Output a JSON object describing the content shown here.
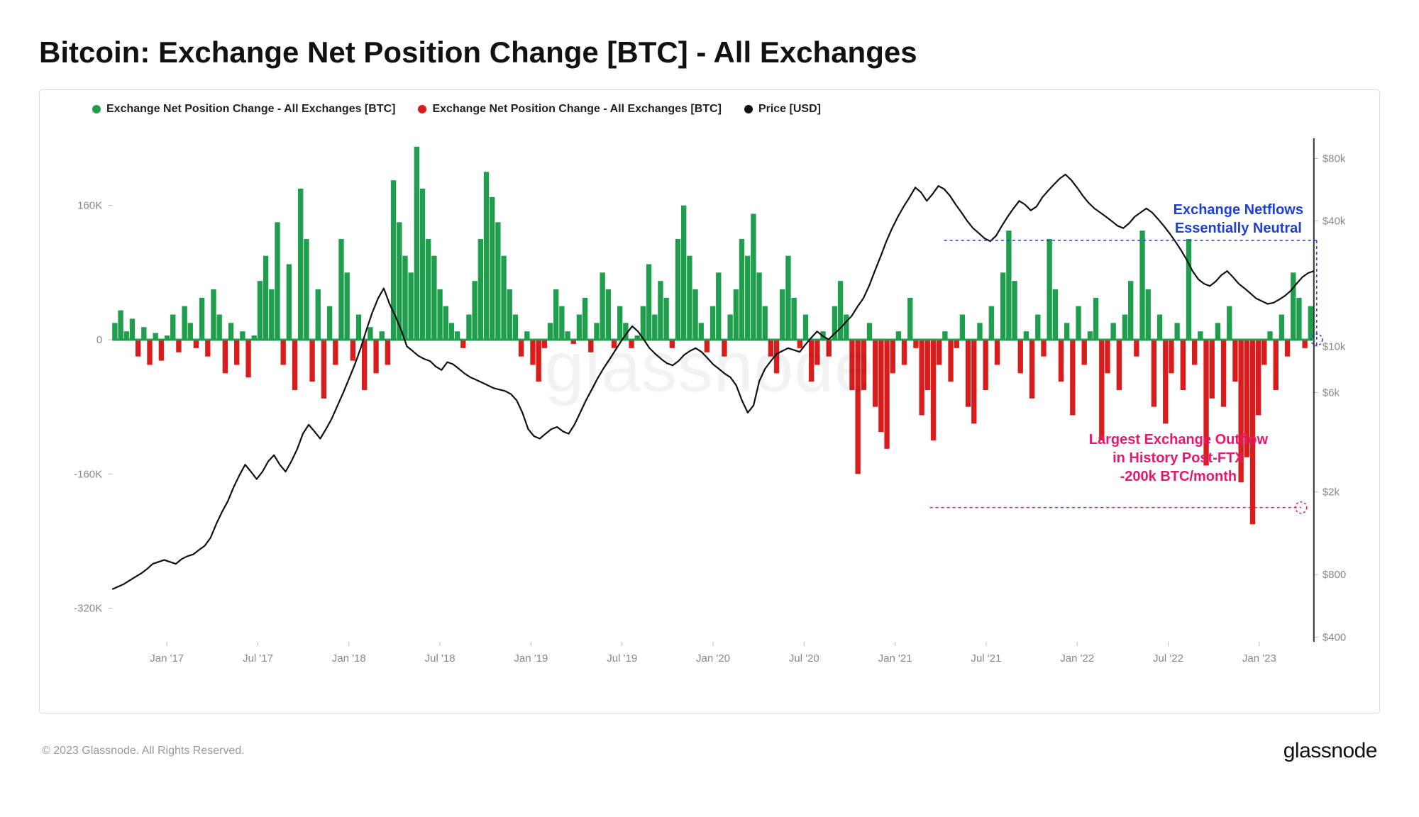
{
  "title": "Bitcoin: Exchange Net Position Change [BTC] - All Exchanges",
  "legend": {
    "series1": {
      "label": "Exchange Net Position Change - All Exchanges [BTC]",
      "color": "#1f9e4d"
    },
    "series2": {
      "label": "Exchange Net Position Change - All Exchanges [BTC]",
      "color": "#d91d1d"
    },
    "series3": {
      "label": "Price [USD]",
      "color": "#111111"
    }
  },
  "watermark": "glassnode",
  "copyright": "© 2023 Glassnode. All Rights Reserved.",
  "brand": "glassnode",
  "annotations": {
    "neutral": {
      "line1": "Exchange Netflows",
      "line2": "Essentially Neutral",
      "color": "#1c3fd6"
    },
    "outflow": {
      "line1": "Largest Exchange Outflow",
      "line2": "in History Post-FTX",
      "line3": "-200k BTC/month",
      "color": "#e6186e"
    }
  },
  "chart": {
    "type": "bar+line",
    "background_color": "#ffffff",
    "border_color": "#dcdcdc",
    "tick_color": "#888888",
    "zero_line_color": "#1f9e4d",
    "left_axis": {
      "min": -360,
      "max": 240,
      "ticks": [
        -320,
        -160,
        0,
        160
      ],
      "unit": "K"
    },
    "right_axis": {
      "type": "log",
      "min": 380,
      "max": 100000,
      "ticks": [
        400,
        800,
        2000,
        6000,
        10000,
        40000,
        80000
      ],
      "prefix": "$",
      "suffix": "k_if_ge_1000"
    },
    "x_axis": {
      "labels": [
        "Jan '17",
        "Jul '17",
        "Jan '18",
        "Jul '18",
        "Jan '19",
        "Jul '19",
        "Jan '20",
        "Jul '20",
        "Jan '21",
        "Jul '21",
        "Jan '22",
        "Jul '22",
        "Jan '23"
      ]
    },
    "bars": [
      20,
      35,
      10,
      25,
      -20,
      15,
      -30,
      8,
      -25,
      5,
      30,
      -15,
      40,
      20,
      -10,
      50,
      -20,
      60,
      30,
      -40,
      20,
      -30,
      10,
      -45,
      5,
      70,
      100,
      60,
      140,
      -30,
      90,
      -60,
      180,
      120,
      -50,
      60,
      -70,
      40,
      -30,
      120,
      80,
      -25,
      30,
      -60,
      15,
      -40,
      10,
      -30,
      190,
      140,
      100,
      80,
      230,
      180,
      120,
      100,
      60,
      40,
      20,
      10,
      -10,
      30,
      70,
      120,
      200,
      170,
      140,
      100,
      60,
      30,
      -20,
      10,
      -30,
      -50,
      -10,
      20,
      60,
      40,
      10,
      -5,
      30,
      50,
      -15,
      20,
      80,
      60,
      -10,
      40,
      20,
      -10,
      5,
      40,
      90,
      30,
      70,
      50,
      -10,
      120,
      160,
      100,
      60,
      20,
      -15,
      40,
      80,
      -20,
      30,
      60,
      120,
      100,
      150,
      80,
      40,
      -20,
      -40,
      60,
      100,
      50,
      -10,
      30,
      -50,
      -30,
      10,
      -20,
      40,
      70,
      30,
      -60,
      -160,
      -60,
      20,
      -80,
      -110,
      -130,
      -40,
      10,
      -30,
      50,
      -10,
      -90,
      -60,
      -120,
      -30,
      10,
      -50,
      -10,
      30,
      -80,
      -100,
      20,
      -60,
      40,
      -30,
      80,
      130,
      70,
      -40,
      10,
      -70,
      30,
      -20,
      120,
      60,
      -50,
      20,
      -90,
      40,
      -30,
      10,
      50,
      -120,
      -40,
      20,
      -60,
      30,
      70,
      -20,
      130,
      60,
      -80,
      30,
      -100,
      -40,
      20,
      -60,
      120,
      -30,
      10,
      -150,
      -70,
      20,
      -80,
      40,
      -50,
      -170,
      -140,
      -220,
      -90,
      -30,
      10,
      -60,
      30,
      -20,
      80,
      50,
      -10,
      40
    ],
    "price": [
      680,
      700,
      720,
      750,
      780,
      810,
      850,
      900,
      920,
      940,
      920,
      900,
      950,
      980,
      1000,
      1050,
      1100,
      1200,
      1400,
      1600,
      1800,
      2100,
      2400,
      2700,
      2500,
      2300,
      2500,
      2800,
      3000,
      2700,
      2500,
      2800,
      3200,
      3800,
      4200,
      3900,
      3600,
      4000,
      4500,
      5200,
      6000,
      7000,
      8200,
      9800,
      12000,
      14500,
      17000,
      19000,
      16000,
      14000,
      12000,
      10000,
      9500,
      9000,
      8700,
      8500,
      8000,
      7700,
      8400,
      8200,
      7800,
      7400,
      7100,
      6900,
      6700,
      6500,
      6300,
      6200,
      6100,
      5900,
      5500,
      4800,
      4000,
      3700,
      3600,
      3800,
      4000,
      4100,
      3900,
      3800,
      4200,
      4800,
      5500,
      6200,
      7000,
      7800,
      8600,
      9500,
      10500,
      11500,
      12500,
      11800,
      10800,
      9800,
      9200,
      8700,
      8300,
      8100,
      8500,
      9100,
      9500,
      9800,
      9400,
      8800,
      8200,
      7800,
      7400,
      7100,
      6500,
      5500,
      4800,
      5200,
      6800,
      7800,
      8500,
      9200,
      9500,
      9800,
      9600,
      9400,
      10200,
      11000,
      11800,
      11200,
      10800,
      11500,
      12200,
      13100,
      14000,
      15500,
      17000,
      19500,
      23000,
      27000,
      32000,
      37000,
      42000,
      47000,
      52000,
      58000,
      55000,
      50000,
      54000,
      59000,
      57000,
      53000,
      48000,
      44000,
      40000,
      37000,
      35000,
      33000,
      32000,
      34000,
      38000,
      42000,
      46000,
      50000,
      48000,
      45000,
      47000,
      52000,
      56000,
      60000,
      64000,
      67000,
      63000,
      58000,
      53000,
      49000,
      46000,
      44000,
      42000,
      40000,
      38000,
      37000,
      39000,
      42000,
      44000,
      46000,
      44000,
      41000,
      38000,
      35000,
      32000,
      29000,
      26000,
      23000,
      21000,
      20000,
      19500,
      20500,
      22000,
      23000,
      21500,
      20000,
      19000,
      18000,
      17000,
      16500,
      16000,
      16200,
      16800,
      17500,
      18500,
      20000,
      21500,
      22500,
      23000
    ]
  }
}
